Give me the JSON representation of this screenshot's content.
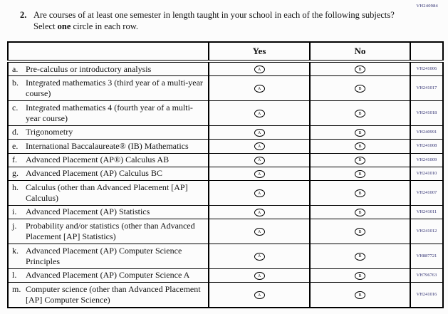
{
  "page_code": "VH240984",
  "question": {
    "number": "2.",
    "text_before_bold": "Are courses of at least one semester in length taught in your school in each of the following subjects? Select ",
    "bold_word": "one",
    "text_after_bold": " circle in each row."
  },
  "table": {
    "header_yes": "Yes",
    "header_no": "No",
    "oval_yes_letter": "A",
    "oval_no_letter": "B",
    "rows": [
      {
        "letter": "a.",
        "subject": "Pre-calculus or introductory analysis",
        "code": "VH241006"
      },
      {
        "letter": "b.",
        "subject": "Integrated mathematics 3 (third year of a multi-year course)",
        "code": "VH241017"
      },
      {
        "letter": "c.",
        "subject": "Integrated mathematics 4 (fourth year of a multi-year course)",
        "code": "VH241018"
      },
      {
        "letter": "d.",
        "subject": "Trigonometry",
        "code": "VH240991"
      },
      {
        "letter": "e.",
        "subject": "International Baccalaureate® (IB) Mathematics",
        "code": "VH241008"
      },
      {
        "letter": "f.",
        "subject": "Advanced Placement (AP®) Calculus AB",
        "code": "VH241009"
      },
      {
        "letter": "g.",
        "subject": "Advanced Placement (AP) Calculus BC",
        "code": "VH241010"
      },
      {
        "letter": "h.",
        "subject": "Calculus (other than Advanced Placement [AP] Calculus)",
        "code": "VH241007"
      },
      {
        "letter": "i.",
        "subject": "Advanced Placement (AP) Statistics",
        "code": "VH241011"
      },
      {
        "letter": "j.",
        "subject": "Probability and/or statistics (other than Advanced Placement [AP] Statistics)",
        "code": "VH241012"
      },
      {
        "letter": "k.",
        "subject": "Advanced Placement (AP) Computer Science Principles",
        "code": "VH887721"
      },
      {
        "letter": "l.",
        "subject": "Advanced Placement (AP) Computer Science A",
        "code": "VH796763"
      },
      {
        "letter": "m.",
        "subject": "Computer science (other than Advanced Placement [AP] Computer Science)",
        "code": "VH241016"
      }
    ]
  },
  "colors": {
    "code_text": "#2b2b6e",
    "body_text": "#111111",
    "border": "#000000",
    "background": "#fcfcfc"
  }
}
